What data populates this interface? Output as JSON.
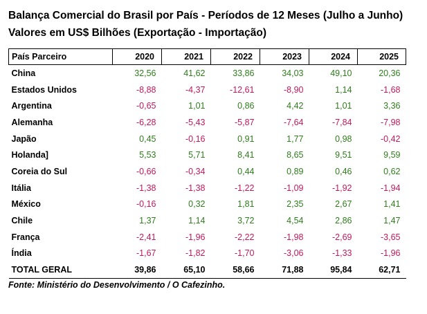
{
  "title_line1": "Balança Comercial do Brasil por País - Períodos de 12 Meses (Julho a Junho)",
  "title_line2": "Valores em US$ Bilhões (Exportação - Importação)",
  "colors": {
    "positive": "#2e7d1b",
    "negative": "#c2185b"
  },
  "table": {
    "headers": [
      "País Parceiro",
      "2020",
      "2021",
      "2022",
      "2023",
      "2024",
      "2025"
    ],
    "rows": [
      {
        "country": "China",
        "values": [
          "32,56",
          "41,62",
          "33,86",
          "34,03",
          "49,10",
          "20,36"
        ]
      },
      {
        "country": "Estados Unidos",
        "values": [
          "-8,88",
          "-4,37",
          "-12,61",
          "-8,90",
          "1,14",
          "-1,68"
        ]
      },
      {
        "country": "Argentina",
        "values": [
          "-0,65",
          "1,01",
          "0,86",
          "4,42",
          "1,01",
          "3,36"
        ]
      },
      {
        "country": "Alemanha",
        "values": [
          "-6,28",
          "-5,43",
          "-5,87",
          "-7,64",
          "-7,84",
          "-7,98"
        ]
      },
      {
        "country": "Japão",
        "values": [
          "0,45",
          "-0,16",
          "0,91",
          "1,77",
          "0,98",
          "-0,42"
        ]
      },
      {
        "country": "Holanda]",
        "values": [
          "5,53",
          "5,71",
          "8,41",
          "8,65",
          "9,51",
          "9,59"
        ]
      },
      {
        "country": "Coreia do Sul",
        "values": [
          "-0,66",
          "-0,34",
          "0,44",
          "0,89",
          "0,46",
          "0,62"
        ]
      },
      {
        "country": "Itália",
        "values": [
          "-1,38",
          "-1,38",
          "-1,22",
          "-1,09",
          "-1,92",
          "-1,94"
        ]
      },
      {
        "country": "México",
        "values": [
          "-0,16",
          "0,32",
          "1,81",
          "2,35",
          "2,67",
          "1,41"
        ]
      },
      {
        "country": "Chile",
        "values": [
          "1,37",
          "1,14",
          "3,72",
          "4,54",
          "2,86",
          "1,47"
        ]
      },
      {
        "country": "França",
        "values": [
          "-2,41",
          "-1,96",
          "-2,22",
          "-1,98",
          "-2,69",
          "-3,65"
        ]
      },
      {
        "country": "Índia",
        "values": [
          "-1,67",
          "-1,82",
          "-1,70",
          "-3,06",
          "-1,33",
          "-1,96"
        ]
      }
    ],
    "total": {
      "country": "TOTAL GERAL",
      "values": [
        "39,86",
        "65,10",
        "58,66",
        "71,88",
        "95,84",
        "62,71"
      ]
    }
  },
  "source": "Fonte: Ministério do Desenvolvimento / O Cafezinho."
}
